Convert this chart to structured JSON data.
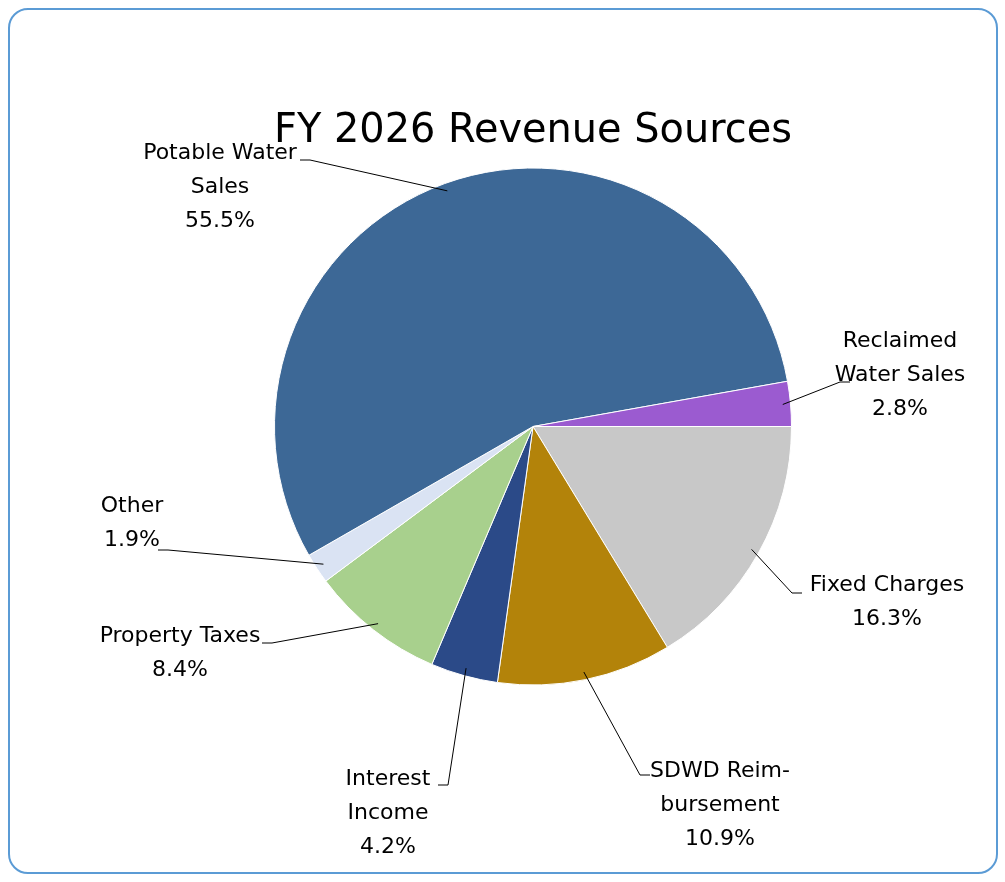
{
  "chart_data": {
    "type": "pie",
    "title": "FY 2026 Revenue Sources",
    "categories": [
      "Fixed Charges",
      "SDWD Reim-bursement",
      "Interest Income",
      "Property Taxes",
      "Other",
      "Potable Water Sales",
      "Reclaimed Water Sales"
    ],
    "values": [
      16.3,
      10.9,
      4.2,
      8.4,
      1.9,
      55.5,
      2.8
    ],
    "value_labels": [
      "16.3%",
      "10.9%",
      "4.2%",
      "8.4%",
      "1.9%",
      "55.5%",
      "2.8%"
    ],
    "colors": [
      "#c8c8c8",
      "#b3830a",
      "#2b4a88",
      "#a8d08d",
      "#dae3f3",
      "#3d6896",
      "#9b5bd0"
    ]
  }
}
